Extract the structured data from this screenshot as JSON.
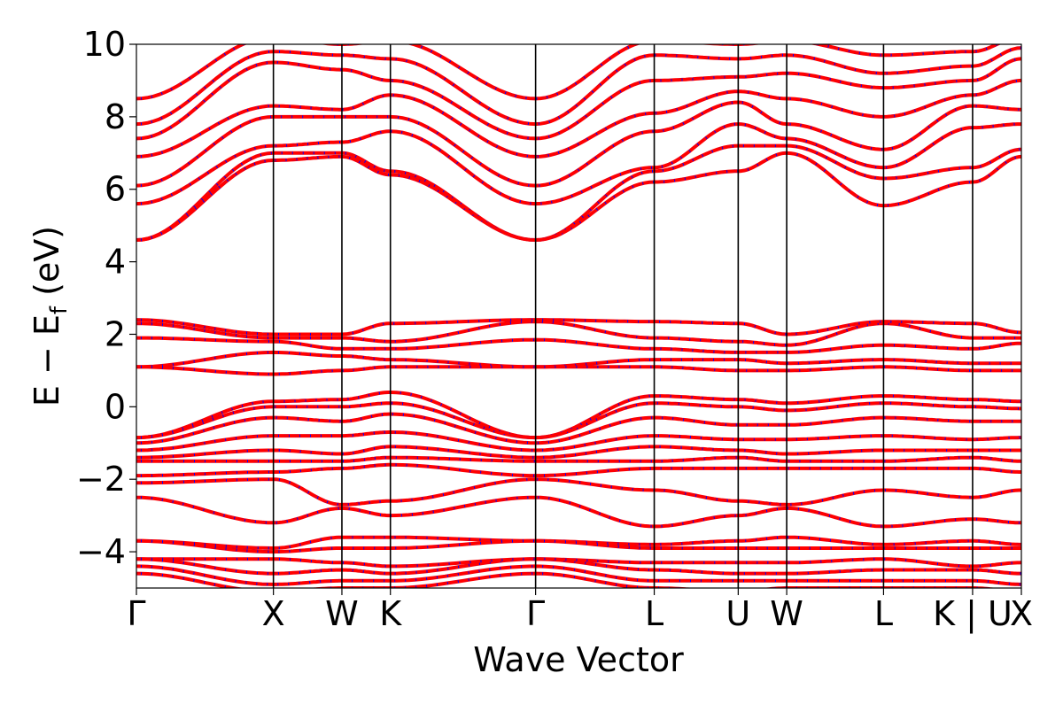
{
  "chart_data": {
    "type": "line",
    "title": "",
    "xlabel": "Wave Vector",
    "ylabel": "E − E",
    "ylabel_sub": "f",
    "ylabel_unit": " (eV)",
    "ylim": [
      -5,
      10
    ],
    "yticks": [
      -4,
      -2,
      0,
      2,
      4,
      6,
      8,
      10
    ],
    "ytick_labels": [
      "−4",
      "−2",
      "0",
      "2",
      "4",
      "6",
      "8",
      "10"
    ],
    "x_range": [
      0,
      6.46
    ],
    "high_symmetry_points": [
      {
        "label": "Γ",
        "x": 0.0
      },
      {
        "label": "X",
        "x": 1.0
      },
      {
        "label": "W",
        "x": 1.5
      },
      {
        "label": "K",
        "x": 1.854
      },
      {
        "label": "Γ",
        "x": 2.914
      },
      {
        "label": "L",
        "x": 3.78
      },
      {
        "label": "U",
        "x": 4.393
      },
      {
        "label": "W",
        "x": 4.747
      },
      {
        "label": "L",
        "x": 5.454
      },
      {
        "label": "K | U",
        "x": 6.104
      },
      {
        "label": "X",
        "x": 6.46
      }
    ],
    "grid": false,
    "legend": "none",
    "colors": {
      "series_a": "#ff0000",
      "series_b": "#0000ff",
      "axis": "#000000"
    },
    "series": [
      {
        "line_style": "solid",
        "color": "#ff0000",
        "bands": [
          [
            4.6,
            6.8,
            6.9,
            6.4,
            4.6,
            6.2,
            6.5,
            7.0,
            5.55,
            6.2,
            6.9
          ],
          [
            4.6,
            7.0,
            7.0,
            6.5,
            4.6,
            6.5,
            7.2,
            7.2,
            6.3,
            6.6,
            7.1
          ],
          [
            5.6,
            7.2,
            7.3,
            7.6,
            5.6,
            6.6,
            7.8,
            7.4,
            6.6,
            7.7,
            7.8
          ],
          [
            6.1,
            8.0,
            8.0,
            8.0,
            6.1,
            7.6,
            8.4,
            7.8,
            7.1,
            8.3,
            8.2
          ],
          [
            6.9,
            8.3,
            8.2,
            8.6,
            6.9,
            8.1,
            8.7,
            8.5,
            8.0,
            8.6,
            9.0
          ],
          [
            7.4,
            9.5,
            9.3,
            9.0,
            7.4,
            9.0,
            9.1,
            9.2,
            8.8,
            9.0,
            9.6
          ],
          [
            7.8,
            9.8,
            9.7,
            9.6,
            7.8,
            9.7,
            9.6,
            9.7,
            9.2,
            9.4,
            9.9
          ],
          [
            8.5,
            10.2,
            10.0,
            10.1,
            8.5,
            10.1,
            10.0,
            10.1,
            9.7,
            9.8,
            10.2
          ],
          [
            2.4,
            2.0,
            2.0,
            2.3,
            2.4,
            2.35,
            2.3,
            2.0,
            2.35,
            2.3,
            2.05
          ],
          [
            2.3,
            1.9,
            1.9,
            1.8,
            2.35,
            1.9,
            1.8,
            1.7,
            2.3,
            1.9,
            1.9
          ],
          [
            1.9,
            1.8,
            1.6,
            1.6,
            1.85,
            1.6,
            1.5,
            1.5,
            1.7,
            1.6,
            1.75
          ],
          [
            1.1,
            1.5,
            1.4,
            1.3,
            1.1,
            1.3,
            1.3,
            1.2,
            1.3,
            1.2,
            1.2
          ],
          [
            1.1,
            0.9,
            1.0,
            1.1,
            1.1,
            1.1,
            1.0,
            1.0,
            1.1,
            1.0,
            1.0
          ],
          [
            -0.85,
            0.15,
            0.2,
            0.4,
            -0.85,
            0.3,
            0.2,
            0.1,
            0.3,
            0.2,
            0.15
          ],
          [
            -0.85,
            0.0,
            0.0,
            0.1,
            -0.85,
            0.1,
            0.0,
            -0.1,
            0.1,
            0.0,
            -0.05
          ],
          [
            -1.0,
            -0.3,
            -0.4,
            -0.2,
            -1.0,
            -0.3,
            -0.5,
            -0.5,
            -0.3,
            -0.4,
            -0.4
          ],
          [
            -1.2,
            -0.8,
            -0.8,
            -0.7,
            -1.2,
            -0.8,
            -0.9,
            -0.9,
            -0.8,
            -0.9,
            -0.85
          ],
          [
            -1.4,
            -1.2,
            -1.3,
            -1.1,
            -1.4,
            -1.1,
            -1.2,
            -1.3,
            -1.2,
            -1.2,
            -1.2
          ],
          [
            -1.5,
            -1.5,
            -1.5,
            -1.4,
            -1.5,
            -1.5,
            -1.4,
            -1.5,
            -1.5,
            -1.4,
            -1.5
          ],
          [
            -1.9,
            -1.8,
            -1.7,
            -1.6,
            -1.9,
            -1.7,
            -1.7,
            -1.7,
            -1.7,
            -1.7,
            -1.8
          ],
          [
            -2.1,
            -2.0,
            -2.7,
            -2.6,
            -2.0,
            -2.3,
            -2.6,
            -2.7,
            -2.3,
            -2.5,
            -2.3
          ],
          [
            -2.5,
            -3.2,
            -2.8,
            -3.0,
            -2.5,
            -3.3,
            -3.0,
            -2.8,
            -3.3,
            -3.1,
            -3.2
          ],
          [
            -3.7,
            -3.9,
            -3.6,
            -3.6,
            -3.7,
            -3.8,
            -3.7,
            -3.6,
            -3.8,
            -3.7,
            -3.8
          ],
          [
            -3.7,
            -4.0,
            -3.9,
            -3.9,
            -3.7,
            -3.9,
            -3.9,
            -3.9,
            -3.9,
            -3.9,
            -3.9
          ],
          [
            -4.2,
            -4.2,
            -4.3,
            -4.4,
            -4.2,
            -4.3,
            -4.3,
            -4.3,
            -4.2,
            -4.4,
            -4.3
          ],
          [
            -4.2,
            -4.6,
            -4.5,
            -4.6,
            -4.2,
            -4.5,
            -4.6,
            -4.6,
            -4.5,
            -4.5,
            -4.6
          ],
          [
            -4.4,
            -4.9,
            -4.8,
            -4.8,
            -4.4,
            -4.8,
            -4.8,
            -4.8,
            -4.8,
            -4.8,
            -4.9
          ],
          [
            -4.6,
            -5.1,
            -5.0,
            -5.0,
            -4.6,
            -5.0,
            -5.1,
            -5.0,
            -5.0,
            -5.0,
            -5.1
          ]
        ]
      },
      {
        "line_style": "dashed",
        "color": "#0000ff",
        "same_as": 0
      }
    ]
  }
}
